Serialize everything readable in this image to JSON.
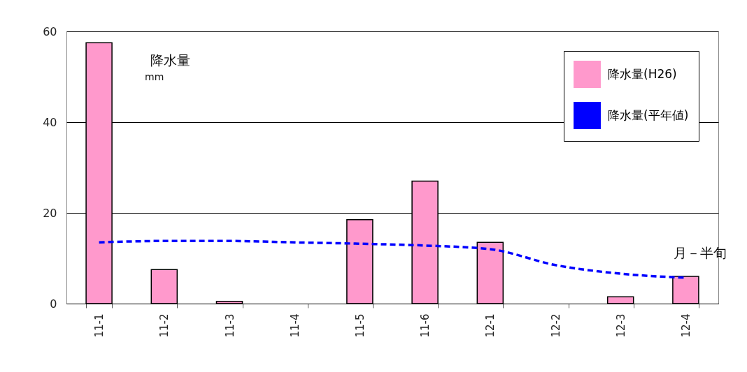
{
  "chart_data": {
    "type": "bar",
    "categories": [
      "11-1",
      "11-2",
      "11-3",
      "11-4",
      "11-5",
      "11-6",
      "12-1",
      "12-2",
      "12-3",
      "12-4"
    ],
    "series": [
      {
        "name": "降水量(H26)",
        "color": "#ff99cc",
        "values": [
          57.5,
          7.5,
          0.5,
          0,
          18.5,
          27,
          13.5,
          0,
          1.5,
          6
        ]
      },
      {
        "name": "降水量(平年値)",
        "type": "line",
        "color": "#0000ff",
        "line_style": "dashed",
        "values": [
          13.5,
          13.8,
          13.8,
          13.5,
          13.2,
          12.8,
          12,
          8.5,
          6.6,
          5.7
        ]
      }
    ],
    "ylim": [
      0,
      60
    ],
    "yticks": [
      0,
      20,
      40,
      60
    ],
    "grid": "y",
    "legend": "top right",
    "annotations": [
      "降水量",
      "mm",
      "月－半旬"
    ]
  }
}
